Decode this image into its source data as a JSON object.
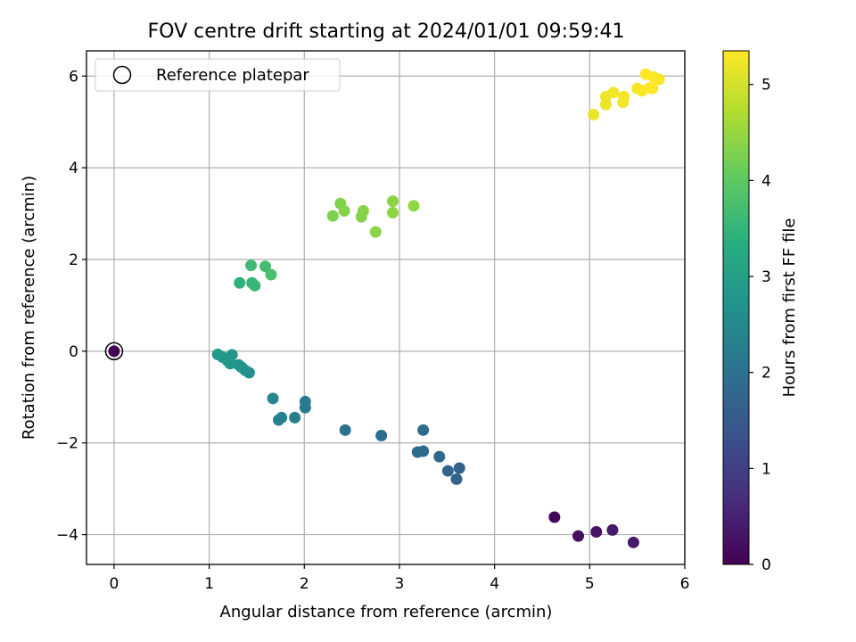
{
  "chart_data": {
    "type": "scatter",
    "title": "FOV centre drift starting at 2024/01/01 09:59:41",
    "xlabel": "Angular distance from reference (arcmin)",
    "ylabel": "Rotation from reference (arcmin)",
    "xlim": [
      -0.29,
      6.0
    ],
    "ylim": [
      -4.65,
      6.55
    ],
    "xticks": [
      0,
      1,
      2,
      3,
      4,
      5,
      6
    ],
    "yticks": [
      -4,
      -2,
      0,
      2,
      4,
      6
    ],
    "xtick_labels": [
      "0",
      "1",
      "2",
      "3",
      "4",
      "5",
      "6"
    ],
    "ytick_labels": [
      "−4",
      "−2",
      "0",
      "2",
      "4",
      "6"
    ],
    "grid": true,
    "legend": {
      "placement": "top-left",
      "entries": [
        {
          "label": "Reference platepar",
          "marker": "open-circle"
        }
      ]
    },
    "colorbar": {
      "label": "Hours from first FF file",
      "colormap": "viridis",
      "range": [
        0,
        5.35
      ],
      "ticks": [
        0,
        1,
        2,
        3,
        4,
        5
      ],
      "tick_labels": [
        "0",
        "1",
        "2",
        "3",
        "4",
        "5"
      ]
    },
    "reference": {
      "x": 0,
      "y": 0
    },
    "points": [
      {
        "x": 0.0,
        "y": 0.0,
        "hours": 0.0
      },
      {
        "x": 4.63,
        "y": -3.62,
        "hours": 0.1
      },
      {
        "x": 4.88,
        "y": -4.03,
        "hours": 0.2
      },
      {
        "x": 5.07,
        "y": -3.94,
        "hours": 0.3
      },
      {
        "x": 5.24,
        "y": -3.9,
        "hours": 0.35
      },
      {
        "x": 5.46,
        "y": -4.17,
        "hours": 0.4
      },
      {
        "x": 3.63,
        "y": -2.55,
        "hours": 1.7
      },
      {
        "x": 3.6,
        "y": -2.79,
        "hours": 1.72
      },
      {
        "x": 3.51,
        "y": -2.61,
        "hours": 1.75
      },
      {
        "x": 3.42,
        "y": -2.3,
        "hours": 1.78
      },
      {
        "x": 3.25,
        "y": -1.72,
        "hours": 1.85
      },
      {
        "x": 3.25,
        "y": -2.18,
        "hours": 1.87
      },
      {
        "x": 3.19,
        "y": -2.2,
        "hours": 1.9
      },
      {
        "x": 2.81,
        "y": -1.84,
        "hours": 1.95
      },
      {
        "x": 2.43,
        "y": -1.72,
        "hours": 2.05
      },
      {
        "x": 2.01,
        "y": -1.1,
        "hours": 2.2
      },
      {
        "x": 2.01,
        "y": -1.23,
        "hours": 2.22
      },
      {
        "x": 1.9,
        "y": -1.45,
        "hours": 2.3
      },
      {
        "x": 1.76,
        "y": -1.45,
        "hours": 2.38
      },
      {
        "x": 1.73,
        "y": -1.5,
        "hours": 2.4
      },
      {
        "x": 1.67,
        "y": -1.03,
        "hours": 2.45
      },
      {
        "x": 1.42,
        "y": -0.47,
        "hours": 2.72
      },
      {
        "x": 1.38,
        "y": -0.42,
        "hours": 2.74
      },
      {
        "x": 1.34,
        "y": -0.35,
        "hours": 2.76
      },
      {
        "x": 1.31,
        "y": -0.3,
        "hours": 2.78
      },
      {
        "x": 1.24,
        "y": -0.08,
        "hours": 2.82
      },
      {
        "x": 1.22,
        "y": -0.27,
        "hours": 2.84
      },
      {
        "x": 1.19,
        "y": -0.2,
        "hours": 2.86
      },
      {
        "x": 1.14,
        "y": -0.13,
        "hours": 2.88
      },
      {
        "x": 1.09,
        "y": -0.07,
        "hours": 2.9
      },
      {
        "x": 1.32,
        "y": 1.49,
        "hours": 3.45
      },
      {
        "x": 1.45,
        "y": 1.49,
        "hours": 3.55
      },
      {
        "x": 1.48,
        "y": 1.43,
        "hours": 3.58
      },
      {
        "x": 1.44,
        "y": 1.87,
        "hours": 3.65
      },
      {
        "x": 1.59,
        "y": 1.85,
        "hours": 3.72
      },
      {
        "x": 1.65,
        "y": 1.67,
        "hours": 3.78
      },
      {
        "x": 2.3,
        "y": 2.95,
        "hours": 4.3
      },
      {
        "x": 2.38,
        "y": 3.22,
        "hours": 4.32
      },
      {
        "x": 2.42,
        "y": 3.06,
        "hours": 4.34
      },
      {
        "x": 2.6,
        "y": 2.93,
        "hours": 4.36
      },
      {
        "x": 2.62,
        "y": 3.06,
        "hours": 4.38
      },
      {
        "x": 2.75,
        "y": 2.6,
        "hours": 4.4
      },
      {
        "x": 2.93,
        "y": 3.27,
        "hours": 4.42
      },
      {
        "x": 2.93,
        "y": 3.02,
        "hours": 4.44
      },
      {
        "x": 3.15,
        "y": 3.17,
        "hours": 4.46
      },
      {
        "x": 5.04,
        "y": 5.16,
        "hours": 5.2
      },
      {
        "x": 5.17,
        "y": 5.38,
        "hours": 5.22
      },
      {
        "x": 5.17,
        "y": 5.55,
        "hours": 5.24
      },
      {
        "x": 5.25,
        "y": 5.64,
        "hours": 5.26
      },
      {
        "x": 5.35,
        "y": 5.43,
        "hours": 5.27
      },
      {
        "x": 5.36,
        "y": 5.55,
        "hours": 5.28
      },
      {
        "x": 5.5,
        "y": 5.73,
        "hours": 5.3
      },
      {
        "x": 5.55,
        "y": 5.68,
        "hours": 5.31
      },
      {
        "x": 5.59,
        "y": 6.04,
        "hours": 5.32
      },
      {
        "x": 5.63,
        "y": 5.74,
        "hours": 5.33
      },
      {
        "x": 5.66,
        "y": 5.73,
        "hours": 5.34
      },
      {
        "x": 5.67,
        "y": 5.98,
        "hours": 5.34
      },
      {
        "x": 5.73,
        "y": 5.93,
        "hours": 5.35
      }
    ]
  }
}
